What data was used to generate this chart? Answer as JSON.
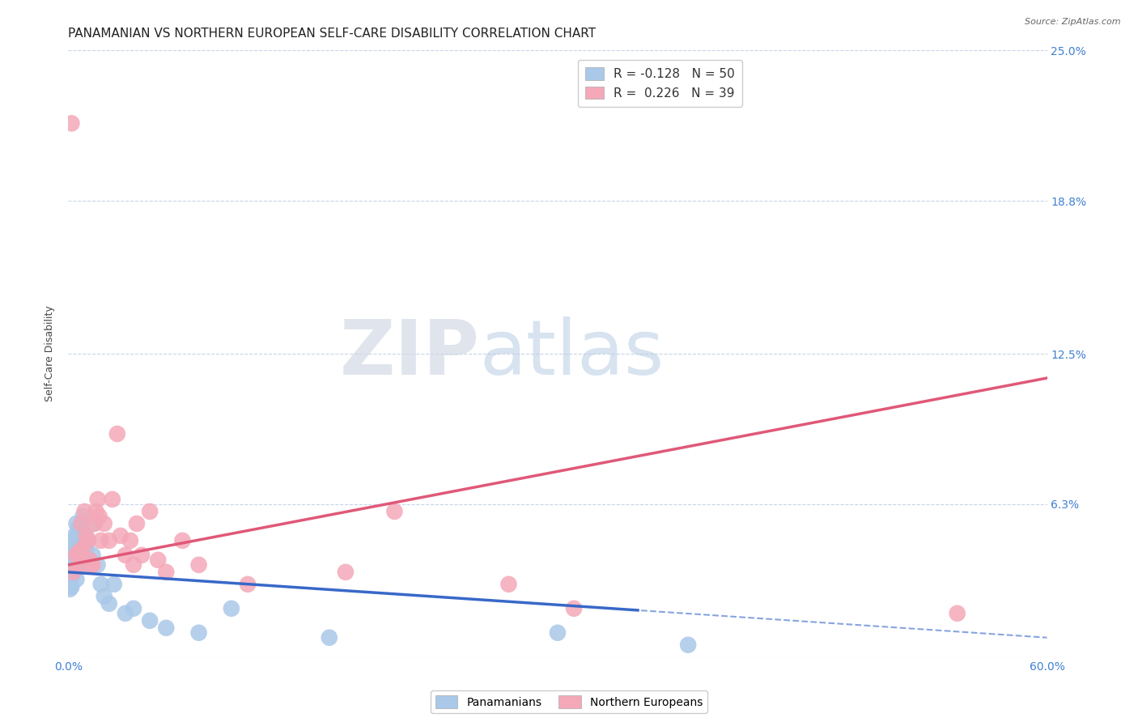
{
  "title": "PANAMANIAN VS NORTHERN EUROPEAN SELF-CARE DISABILITY CORRELATION CHART",
  "source": "Source: ZipAtlas.com",
  "ylabel": "Self-Care Disability",
  "xlim": [
    0.0,
    0.6
  ],
  "ylim": [
    0.0,
    0.25
  ],
  "ytick_positions": [
    0.0,
    0.063,
    0.125,
    0.188,
    0.25
  ],
  "right_ytick_labels": [
    "",
    "6.3%",
    "12.5%",
    "18.8%",
    "25.0%"
  ],
  "panamanian_color": "#aac8e8",
  "northern_european_color": "#f4a8b8",
  "panamanian_line_color": "#3868c8",
  "northern_european_line_color": "#e05878",
  "background_color": "#ffffff",
  "grid_color": "#c8d4e8",
  "R_panamanian": -0.128,
  "N_panamanian": 50,
  "R_northern_european": 0.226,
  "N_northern_european": 39,
  "pan_line_start_y": 0.035,
  "pan_line_end_y": 0.008,
  "pan_line_solid_end_x": 0.35,
  "nor_line_start_y": 0.038,
  "nor_line_end_y": 0.115,
  "panamanian_x": [
    0.001,
    0.001,
    0.001,
    0.002,
    0.002,
    0.002,
    0.002,
    0.002,
    0.003,
    0.003,
    0.003,
    0.003,
    0.004,
    0.004,
    0.004,
    0.005,
    0.005,
    0.005,
    0.006,
    0.006,
    0.006,
    0.007,
    0.007,
    0.008,
    0.008,
    0.008,
    0.009,
    0.009,
    0.01,
    0.01,
    0.011,
    0.012,
    0.013,
    0.014,
    0.015,
    0.016,
    0.018,
    0.02,
    0.022,
    0.025,
    0.028,
    0.035,
    0.04,
    0.05,
    0.06,
    0.08,
    0.1,
    0.16,
    0.3,
    0.38
  ],
  "panamanian_y": [
    0.03,
    0.032,
    0.028,
    0.036,
    0.038,
    0.042,
    0.033,
    0.029,
    0.038,
    0.043,
    0.048,
    0.035,
    0.045,
    0.04,
    0.05,
    0.055,
    0.038,
    0.032,
    0.04,
    0.048,
    0.053,
    0.042,
    0.045,
    0.04,
    0.048,
    0.052,
    0.038,
    0.058,
    0.044,
    0.05,
    0.045,
    0.048,
    0.04,
    0.038,
    0.042,
    0.055,
    0.038,
    0.03,
    0.025,
    0.022,
    0.03,
    0.018,
    0.02,
    0.015,
    0.012,
    0.01,
    0.02,
    0.008,
    0.01,
    0.005
  ],
  "northern_european_x": [
    0.002,
    0.003,
    0.005,
    0.006,
    0.007,
    0.008,
    0.009,
    0.01,
    0.011,
    0.012,
    0.013,
    0.014,
    0.015,
    0.016,
    0.017,
    0.018,
    0.019,
    0.02,
    0.022,
    0.025,
    0.027,
    0.03,
    0.032,
    0.035,
    0.038,
    0.04,
    0.042,
    0.045,
    0.05,
    0.055,
    0.06,
    0.07,
    0.08,
    0.11,
    0.17,
    0.2,
    0.27,
    0.31,
    0.545
  ],
  "northern_european_y": [
    0.22,
    0.035,
    0.042,
    0.043,
    0.038,
    0.055,
    0.045,
    0.06,
    0.05,
    0.048,
    0.04,
    0.038,
    0.038,
    0.055,
    0.06,
    0.065,
    0.058,
    0.048,
    0.055,
    0.048,
    0.065,
    0.092,
    0.05,
    0.042,
    0.048,
    0.038,
    0.055,
    0.042,
    0.06,
    0.04,
    0.035,
    0.048,
    0.038,
    0.03,
    0.035,
    0.06,
    0.03,
    0.02,
    0.018
  ],
  "watermark_zip": "ZIP",
  "watermark_atlas": "atlas",
  "title_fontsize": 11,
  "axis_label_fontsize": 9,
  "tick_fontsize": 10,
  "legend_fontsize": 11
}
